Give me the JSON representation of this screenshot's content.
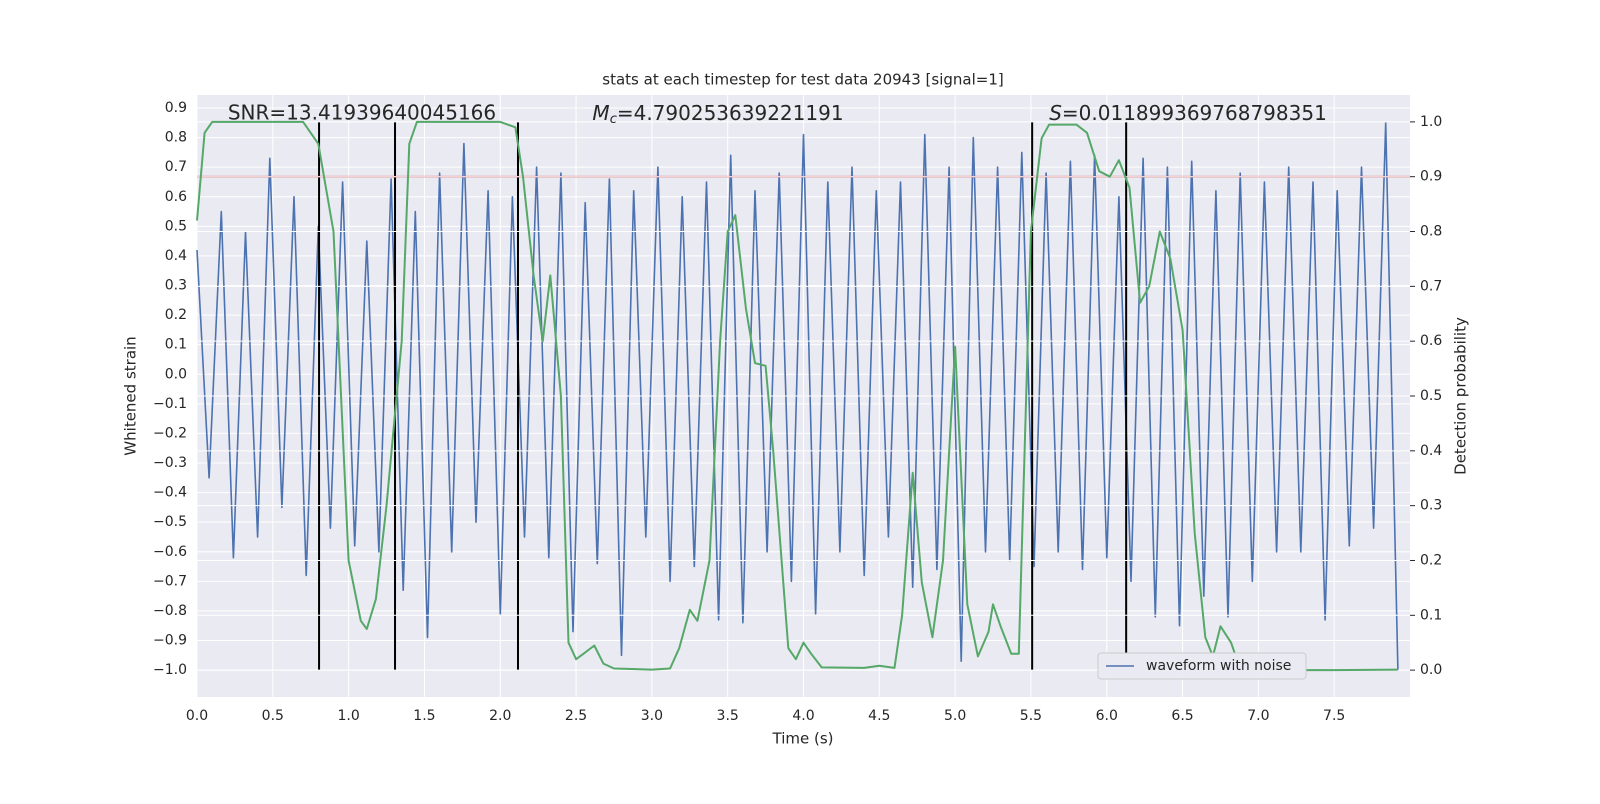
{
  "chart_data": {
    "type": "dual-line",
    "title": "stats at each timestep for test data 20943 [signal=1]",
    "xlabel": "Time (s)",
    "ylabel": "Whitened strain",
    "y2label": "Detection probability",
    "annotations": [
      {
        "text": "SNR=13.41939640045166"
      },
      {
        "symbol": "M",
        "subscript": "c",
        "text": "=4.790253639221191"
      },
      {
        "symbol": "S",
        "text": "=0.011899369768798351"
      }
    ],
    "xlim": [
      0,
      8.0
    ],
    "ylim": [
      -1.091,
      0.944
    ],
    "y2lim": [
      -0.049,
      1.049
    ],
    "xticks": [
      {
        "value": 0,
        "label": "0.0"
      },
      {
        "value": 0.5,
        "label": "0.5"
      },
      {
        "value": 1,
        "label": "1.0"
      },
      {
        "value": 1.5,
        "label": "1.5"
      },
      {
        "value": 2,
        "label": "2.0"
      },
      {
        "value": 2.5,
        "label": "2.5"
      },
      {
        "value": 3,
        "label": "3.0"
      },
      {
        "value": 3.5,
        "label": "3.5"
      },
      {
        "value": 4,
        "label": "4.0"
      },
      {
        "value": 4.5,
        "label": "4.5"
      },
      {
        "value": 5,
        "label": "5.0"
      },
      {
        "value": 5.5,
        "label": "5.5"
      },
      {
        "value": 6,
        "label": "6.0"
      },
      {
        "value": 6.5,
        "label": "6.5"
      },
      {
        "value": 7,
        "label": "7.0"
      },
      {
        "value": 7.5,
        "label": "7.5"
      }
    ],
    "yticks": [
      {
        "value": 0.9,
        "label": "0.9"
      },
      {
        "value": 0.8,
        "label": "0.8"
      },
      {
        "value": 0.7,
        "label": "0.7"
      },
      {
        "value": 0.6,
        "label": "0.6"
      },
      {
        "value": 0.5,
        "label": "0.5"
      },
      {
        "value": 0.4,
        "label": "0.4"
      },
      {
        "value": 0.3,
        "label": "0.3"
      },
      {
        "value": 0.2,
        "label": "0.2"
      },
      {
        "value": 0.1,
        "label": "0.1"
      },
      {
        "value": 0,
        "label": "0.0"
      },
      {
        "value": -0.1,
        "label": "−0.1"
      },
      {
        "value": -0.2,
        "label": "−0.2"
      },
      {
        "value": -0.3,
        "label": "−0.3"
      },
      {
        "value": -0.4,
        "label": "−0.4"
      },
      {
        "value": -0.5,
        "label": "−0.5"
      },
      {
        "value": -0.6,
        "label": "−0.6"
      },
      {
        "value": -0.7,
        "label": "−0.7"
      },
      {
        "value": -0.8,
        "label": "−0.8"
      },
      {
        "value": -0.9,
        "label": "−0.9"
      },
      {
        "value": -1,
        "label": "−1.0"
      }
    ],
    "y2ticks": [
      {
        "value": 0,
        "label": "0.0"
      },
      {
        "value": 0.1,
        "label": "0.1"
      },
      {
        "value": 0.2,
        "label": "0.2"
      },
      {
        "value": 0.3,
        "label": "0.3"
      },
      {
        "value": 0.4,
        "label": "0.4"
      },
      {
        "value": 0.5,
        "label": "0.5"
      },
      {
        "value": 0.6,
        "label": "0.6"
      },
      {
        "value": 0.7,
        "label": "0.7"
      },
      {
        "value": 0.8,
        "label": "0.8"
      },
      {
        "value": 0.9,
        "label": "0.9"
      },
      {
        "value": 1,
        "label": "1.0"
      }
    ],
    "grid": true,
    "legend": "lower right",
    "series": [
      {
        "name": "waveform with noise",
        "color": "#4c72b0",
        "x": [
          0,
          0.08,
          0.16,
          0.24,
          0.32,
          0.4,
          0.48,
          0.56,
          0.64,
          0.72,
          0.8,
          0.88,
          0.96,
          1.04,
          1.12,
          1.2,
          1.28,
          1.36,
          1.44,
          1.52,
          1.6,
          1.68,
          1.76,
          1.84,
          1.92,
          2.0,
          2.08,
          2.16,
          2.24,
          2.32,
          2.4,
          2.48,
          2.56,
          2.64,
          2.72,
          2.8,
          2.88,
          2.96,
          3.04,
          3.12,
          3.2,
          3.28,
          3.36,
          3.44,
          3.52,
          3.6,
          3.68,
          3.76,
          3.84,
          3.92,
          4.0,
          4.08,
          4.16,
          4.24,
          4.32,
          4.4,
          4.48,
          4.56,
          4.64,
          4.72,
          4.8,
          4.88,
          4.96,
          5.04,
          5.12,
          5.2,
          5.28,
          5.36,
          5.44,
          5.52,
          5.6,
          5.68,
          5.76,
          5.84,
          5.92,
          6.0,
          6.08,
          6.16,
          6.24,
          6.32,
          6.4,
          6.48,
          6.56,
          6.64,
          6.72,
          6.8,
          6.88,
          6.96,
          7.04,
          7.12,
          7.2,
          7.28,
          7.36,
          7.44,
          7.52,
          7.6,
          7.68,
          7.76,
          7.84,
          7.92
        ],
        "values": [
          0.42,
          -0.35,
          0.55,
          -0.62,
          0.48,
          -0.55,
          0.73,
          -0.45,
          0.6,
          -0.68,
          0.5,
          -0.52,
          0.65,
          -0.58,
          0.45,
          -0.6,
          0.66,
          -0.73,
          0.55,
          -0.89,
          0.68,
          -0.6,
          0.78,
          -0.5,
          0.62,
          -0.81,
          0.6,
          -0.55,
          0.7,
          -0.62,
          0.68,
          -0.87,
          0.58,
          -0.64,
          0.66,
          -0.95,
          0.62,
          -0.55,
          0.7,
          -0.7,
          0.6,
          -0.65,
          0.65,
          -0.83,
          0.74,
          -0.84,
          0.62,
          -0.6,
          0.68,
          -0.7,
          0.81,
          -0.81,
          0.65,
          -0.6,
          0.7,
          -0.68,
          0.62,
          -0.55,
          0.65,
          -0.72,
          0.81,
          -0.66,
          0.7,
          -0.97,
          0.8,
          -0.6,
          0.7,
          -0.63,
          0.75,
          -0.65,
          0.68,
          -0.6,
          0.72,
          -0.66,
          0.74,
          -0.62,
          0.6,
          -0.7,
          0.73,
          -0.82,
          0.7,
          -0.85,
          0.72,
          -0.75,
          0.62,
          -0.82,
          0.68,
          -0.7,
          0.65,
          -0.6,
          0.7,
          -0.6,
          0.65,
          -0.83,
          0.62,
          -0.58,
          0.7,
          -0.52,
          0.85,
          -1.0
        ]
      },
      {
        "color": "#55a868",
        "axis": "y2",
        "x": [
          0,
          0.05,
          0.1,
          0.7,
          0.8,
          0.9,
          1.0,
          1.08,
          1.12,
          1.18,
          1.25,
          1.35,
          1.4,
          1.45,
          2.0,
          2.1,
          2.15,
          2.22,
          2.28,
          2.33,
          2.4,
          2.45,
          2.5,
          2.55,
          2.62,
          2.68,
          2.75,
          3.0,
          3.12,
          3.18,
          3.25,
          3.3,
          3.38,
          3.45,
          3.5,
          3.55,
          3.62,
          3.68,
          3.75,
          3.8,
          3.9,
          3.95,
          4.0,
          4.05,
          4.12,
          4.4,
          4.5,
          4.6,
          4.65,
          4.72,
          4.78,
          4.85,
          4.92,
          5.0,
          5.08,
          5.15,
          5.22,
          5.25,
          5.3,
          5.37,
          5.42,
          5.5,
          5.57,
          5.62,
          5.8,
          5.87,
          5.95,
          6.02,
          6.08,
          6.15,
          6.22,
          6.28,
          6.35,
          6.42,
          6.5,
          6.58,
          6.65,
          6.7,
          6.75,
          6.82,
          6.88,
          6.95,
          7.05,
          7.12,
          7.18,
          7.3,
          7.5,
          7.92
        ],
        "values": [
          0.82,
          0.98,
          1.0,
          1.0,
          0.96,
          0.8,
          0.2,
          0.09,
          0.075,
          0.13,
          0.3,
          0.6,
          0.96,
          1.0,
          1.0,
          0.99,
          0.9,
          0.72,
          0.6,
          0.72,
          0.5,
          0.05,
          0.02,
          0.03,
          0.045,
          0.012,
          0.003,
          0.001,
          0.003,
          0.04,
          0.11,
          0.09,
          0.2,
          0.6,
          0.8,
          0.83,
          0.66,
          0.56,
          0.555,
          0.4,
          0.04,
          0.02,
          0.05,
          0.03,
          0.005,
          0.004,
          0.008,
          0.004,
          0.1,
          0.36,
          0.16,
          0.06,
          0.2,
          0.59,
          0.12,
          0.025,
          0.07,
          0.12,
          0.08,
          0.03,
          0.03,
          0.8,
          0.97,
          0.995,
          0.995,
          0.98,
          0.91,
          0.9,
          0.93,
          0.88,
          0.67,
          0.7,
          0.8,
          0.75,
          0.62,
          0.25,
          0.06,
          0.025,
          0.08,
          0.05,
          0.002,
          0.0,
          0.003,
          0.01,
          0.003,
          0.0,
          0.0,
          0.001
        ]
      }
    ],
    "threshold": {
      "value": 0.9,
      "color": "#c44e52"
    },
    "vlines": {
      "x": [
        0.805,
        1.306,
        2.117,
        5.508,
        6.128
      ],
      "span": [
        0,
        1
      ],
      "color": "#000000"
    }
  }
}
